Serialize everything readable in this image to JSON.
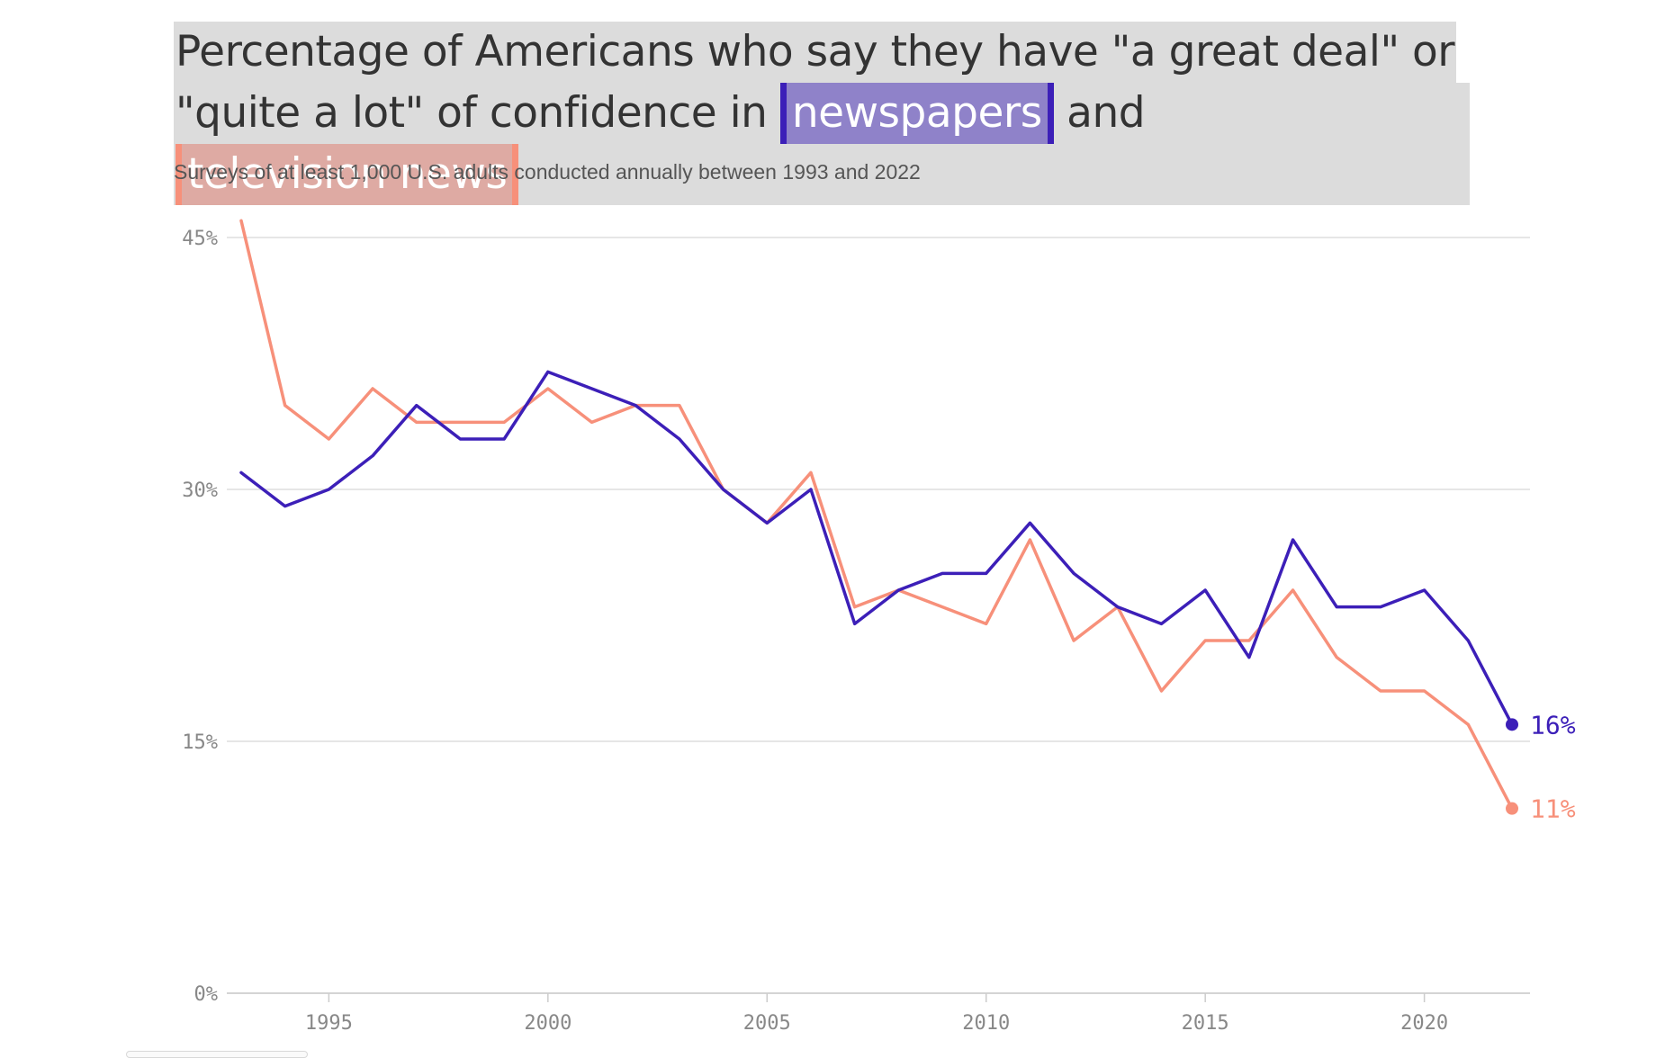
{
  "title": {
    "line1": "Percentage of Americans who say they have \"a great deal\" or",
    "line2_prefix": "\"quite a lot\" of confidence in",
    "newspapers_label": "newspapers",
    "and_text": "and",
    "tv_label": "television news"
  },
  "subtitle": "Surveys of at least 1,000 U.S. adults conducted annually between 1993 and 2022",
  "colors": {
    "newspapers": "#3c1fb8",
    "television": "#f7907a",
    "grid": "#dddddd",
    "axis_text": "#888888"
  },
  "chart_data": {
    "type": "line",
    "title": "Percentage of Americans who say they have \"a great deal\" or \"quite a lot\" of confidence in newspapers and television news",
    "subtitle": "Surveys of at least 1,000 U.S. adults conducted annually between 1993 and 2022",
    "xlabel": "",
    "ylabel": "",
    "xlim": [
      1993,
      2022
    ],
    "ylim": [
      0,
      45
    ],
    "x_ticks": [
      1995,
      2000,
      2005,
      2010,
      2015,
      2020
    ],
    "x_tick_labels": [
      "1995",
      "2000",
      "2005",
      "2010",
      "2015",
      "2020"
    ],
    "y_ticks": [
      0,
      15,
      30,
      45
    ],
    "y_tick_labels": [
      "0%",
      "15%",
      "30%",
      "45%"
    ],
    "grid": true,
    "x": [
      1993,
      1994,
      1995,
      1996,
      1997,
      1998,
      1999,
      2000,
      2001,
      2002,
      2003,
      2004,
      2005,
      2006,
      2007,
      2008,
      2009,
      2010,
      2011,
      2012,
      2013,
      2014,
      2015,
      2016,
      2017,
      2018,
      2019,
      2020,
      2021,
      2022
    ],
    "series": [
      {
        "name": "newspapers",
        "color": "#3c1fb8",
        "end_label": "16%",
        "values": [
          31,
          29,
          30,
          32,
          35,
          33,
          33,
          37,
          36,
          35,
          33,
          30,
          28,
          30,
          22,
          24,
          25,
          25,
          28,
          25,
          23,
          22,
          24,
          20,
          27,
          23,
          23,
          24,
          21,
          16
        ]
      },
      {
        "name": "television news",
        "color": "#f7907a",
        "end_label": "11%",
        "values": [
          46,
          35,
          33,
          36,
          34,
          34,
          34,
          36,
          34,
          35,
          35,
          30,
          28,
          31,
          23,
          24,
          23,
          22,
          27,
          21,
          23,
          18,
          21,
          21,
          24,
          20,
          18,
          18,
          16,
          11
        ]
      }
    ]
  }
}
